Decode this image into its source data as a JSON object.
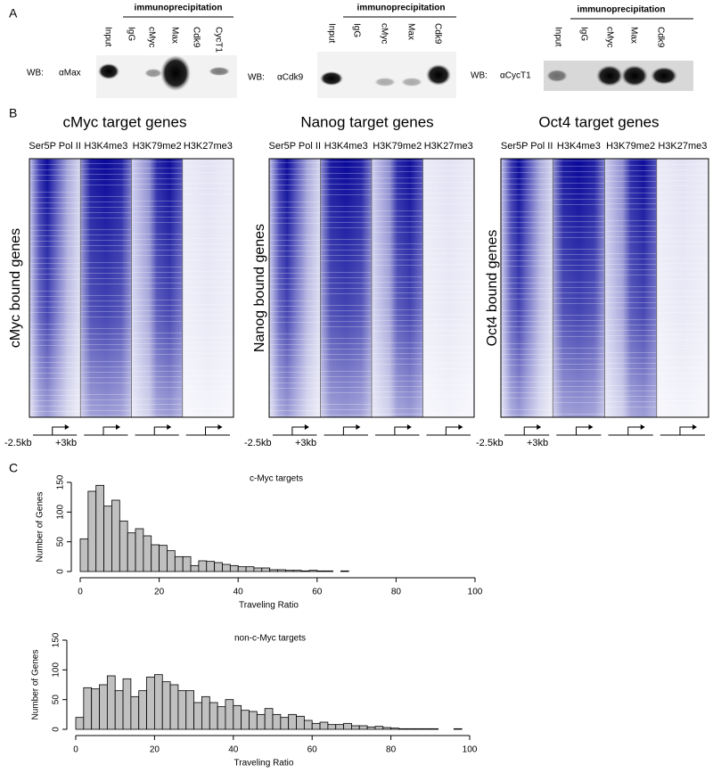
{
  "panel_labels": [
    "A",
    "B",
    "C"
  ],
  "panel_a": {
    "blots": [
      {
        "header": "immunoprecipitation",
        "lanes": [
          "Input",
          "IgG",
          "cMyc",
          "Max",
          "Cdk9",
          "CycT1"
        ],
        "wb": "WB:",
        "antibody": "αMax"
      },
      {
        "header": "immunoprecipitation",
        "lanes": [
          "Input",
          "IgG",
          "cMyc",
          "Max",
          "Cdk9"
        ],
        "wb": "WB:",
        "antibody": "αCdk9"
      },
      {
        "header": "immunoprecipitation",
        "lanes": [
          "Input",
          "IgG",
          "cMyc",
          "Max",
          "Cdk9"
        ],
        "wb": "WB:",
        "antibody": "αCycT1"
      }
    ]
  },
  "panel_b": {
    "heatmaps": [
      {
        "title": "cMyc target genes",
        "columns": [
          "Ser5P Pol II",
          "H3K4me3",
          "H3K79me2",
          "H3K27me3"
        ],
        "row_label": "cMyc bound genes",
        "left_extent": "-2.5kb",
        "right_extent": "+3kb"
      },
      {
        "title": "Nanog target genes",
        "columns": [
          "Ser5P Pol II",
          "H3K4me3",
          "H3K79me2",
          "H3K27me3"
        ],
        "row_label": "Nanog bound genes",
        "left_extent": "-2.5kb",
        "right_extent": "+3kb"
      },
      {
        "title": "Oct4 target genes",
        "columns": [
          "Ser5P Pol II",
          "H3K4me3",
          "H3K79me2",
          "H3K27me3"
        ],
        "row_label": "Oct4 bound genes",
        "left_extent": "-2.5kb",
        "right_extent": "+3kb"
      }
    ]
  },
  "chart_data": [
    {
      "type": "histogram",
      "title": "c-Myc targets",
      "x_label": "Traveling Ratio",
      "y_label": "Number of Genes",
      "color": "#c0c0c0",
      "bins": [
        0,
        2,
        4,
        6,
        8,
        10,
        12,
        14,
        16,
        18,
        20,
        22,
        24,
        26,
        28,
        30,
        32,
        34,
        36,
        38,
        40,
        42,
        44,
        46,
        48,
        50,
        52,
        54,
        56,
        58,
        60,
        62,
        64,
        66,
        68,
        70,
        72,
        74,
        76,
        78,
        80,
        82,
        84,
        86,
        88,
        90,
        92,
        94,
        96,
        98,
        100
      ],
      "values": [
        55,
        135,
        145,
        110,
        120,
        85,
        65,
        72,
        60,
        45,
        44,
        35,
        25,
        25,
        10,
        18,
        17,
        15,
        12,
        10,
        8,
        8,
        6,
        6,
        3,
        3,
        2,
        2,
        1,
        2,
        1,
        1,
        0,
        1,
        0,
        0,
        0,
        0,
        0,
        0,
        0,
        0,
        0,
        0,
        0,
        0,
        0,
        0,
        0,
        0
      ],
      "xlim": [
        0,
        100
      ],
      "xticks": [
        0,
        20,
        40,
        60,
        80,
        100
      ],
      "ylim": [
        0,
        150
      ],
      "yticks": [
        0,
        50,
        100,
        150
      ]
    },
    {
      "type": "histogram",
      "title": "non-c-Myc targets",
      "x_label": "Traveling Ratio",
      "y_label": "Number of Genes",
      "color": "#c0c0c0",
      "bins": [
        0,
        2,
        4,
        6,
        8,
        10,
        12,
        14,
        16,
        18,
        20,
        22,
        24,
        26,
        28,
        30,
        32,
        34,
        36,
        38,
        40,
        42,
        44,
        46,
        48,
        50,
        52,
        54,
        56,
        58,
        60,
        62,
        64,
        66,
        68,
        70,
        72,
        74,
        76,
        78,
        80,
        82,
        84,
        86,
        88,
        90,
        92,
        94,
        96,
        98,
        100
      ],
      "values": [
        20,
        70,
        68,
        75,
        90,
        65,
        85,
        55,
        65,
        88,
        92,
        80,
        75,
        65,
        65,
        45,
        55,
        45,
        38,
        50,
        40,
        32,
        30,
        25,
        35,
        25,
        20,
        25,
        22,
        15,
        10,
        12,
        8,
        8,
        10,
        6,
        6,
        4,
        5,
        3,
        2,
        1,
        1,
        1,
        1,
        1,
        0,
        0,
        1,
        0
      ],
      "xlim": [
        0,
        100
      ],
      "xticks": [
        0,
        20,
        40,
        60,
        80,
        100
      ],
      "ylim": [
        0,
        150
      ],
      "yticks": [
        0,
        50,
        100,
        150
      ]
    }
  ]
}
